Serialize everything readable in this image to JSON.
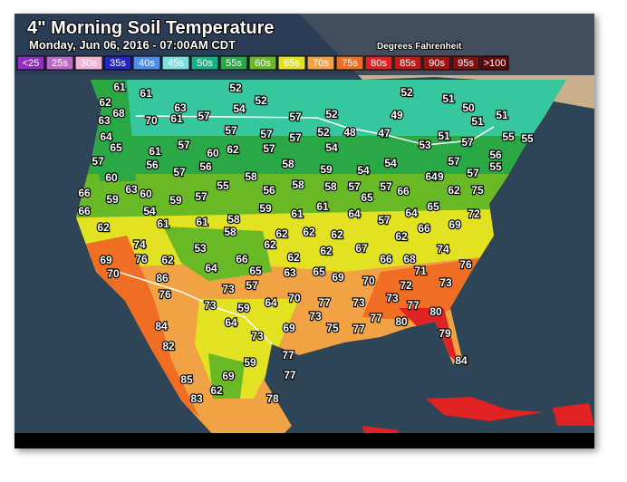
{
  "header": {
    "title": "4\" Morning Soil Temperature",
    "subtitle": "Monday, Jun 06, 2016 - 07:00AM CDT",
    "units": "Degrees Fahrenheit"
  },
  "legend": [
    {
      "label": "<25",
      "color": "#8e2fc2"
    },
    {
      "label": "25s",
      "color": "#c06ac8"
    },
    {
      "label": "30s",
      "color": "#f2b3d6"
    },
    {
      "label": "35s",
      "color": "#2626c4"
    },
    {
      "label": "40s",
      "color": "#4d8ff0"
    },
    {
      "label": "45s",
      "color": "#7fdede"
    },
    {
      "label": "50s",
      "color": "#15b386"
    },
    {
      "label": "55s",
      "color": "#2aa845"
    },
    {
      "label": "60s",
      "color": "#69b926"
    },
    {
      "label": "65s",
      "color": "#e2e223"
    },
    {
      "label": "70s",
      "color": "#f0a245"
    },
    {
      "label": "75s",
      "color": "#f06e24"
    },
    {
      "label": "80s",
      "color": "#e02222"
    },
    {
      "label": "85s",
      "color": "#c01a1a"
    },
    {
      "label": "90s",
      "color": "#a01212"
    },
    {
      "label": "95s",
      "color": "#821010"
    },
    {
      "label": ">100",
      "color": "#640808"
    }
  ],
  "stations": [
    61,
    61,
    52,
    52,
    52,
    51,
    62,
    68,
    63,
    57,
    54,
    57,
    52,
    49,
    50,
    51,
    63,
    70,
    61,
    51,
    64,
    57,
    57,
    57,
    52,
    48,
    47,
    51,
    55,
    55,
    65,
    61,
    57,
    60,
    62,
    57,
    54,
    53,
    57,
    57,
    56,
    57,
    56,
    58,
    54,
    57,
    56,
    60,
    58,
    59,
    54,
    59,
    57,
    55,
    66,
    59,
    63,
    60,
    59,
    57,
    55,
    56,
    58,
    58,
    57,
    57,
    66,
    64,
    62,
    75,
    66,
    54,
    59,
    61,
    61,
    64,
    65,
    57,
    64,
    65,
    72,
    62,
    61,
    61,
    58,
    58,
    62,
    62,
    62,
    62,
    66,
    69,
    74,
    53,
    62,
    62,
    62,
    67,
    74,
    69,
    76,
    62,
    66,
    66,
    68,
    70,
    86,
    64,
    65,
    63,
    65,
    69,
    71,
    76,
    76,
    73,
    57,
    70,
    72,
    73,
    73,
    59,
    64,
    70,
    77,
    73,
    73,
    77,
    64,
    73,
    77,
    80,
    80,
    84,
    69,
    75,
    77,
    73,
    79,
    82,
    77,
    59,
    84,
    77,
    85,
    69,
    62,
    83,
    78
  ]
}
